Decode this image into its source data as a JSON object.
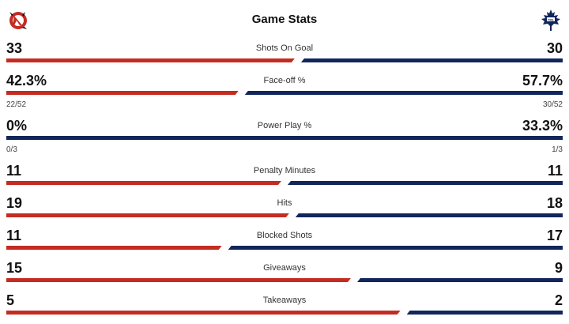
{
  "header": {
    "title": "Game Stats",
    "home_logo_icon": "devils-logo-icon",
    "away_logo_icon": "maple-leafs-logo-icon"
  },
  "colors": {
    "home": "#c42c22",
    "away": "#11265a"
  },
  "stats": [
    {
      "label": "Shots On Goal",
      "home": "33",
      "away": "30",
      "home_share": 0.524
    },
    {
      "label": "Face-off %",
      "home": "42.3%",
      "away": "57.7%",
      "home_share": 0.423,
      "home_sub": "22/52",
      "away_sub": "30/52"
    },
    {
      "label": "Power Play %",
      "home": "0%",
      "away": "33.3%",
      "home_share": 0.0,
      "home_sub": "0/3",
      "away_sub": "1/3"
    },
    {
      "label": "Penalty Minutes",
      "home": "11",
      "away": "11",
      "home_share": 0.5
    },
    {
      "label": "Hits",
      "home": "19",
      "away": "18",
      "home_share": 0.514
    },
    {
      "label": "Blocked Shots",
      "home": "11",
      "away": "17",
      "home_share": 0.393
    },
    {
      "label": "Giveaways",
      "home": "15",
      "away": "9",
      "home_share": 0.625
    },
    {
      "label": "Takeaways",
      "home": "5",
      "away": "2",
      "home_share": 0.714
    }
  ]
}
